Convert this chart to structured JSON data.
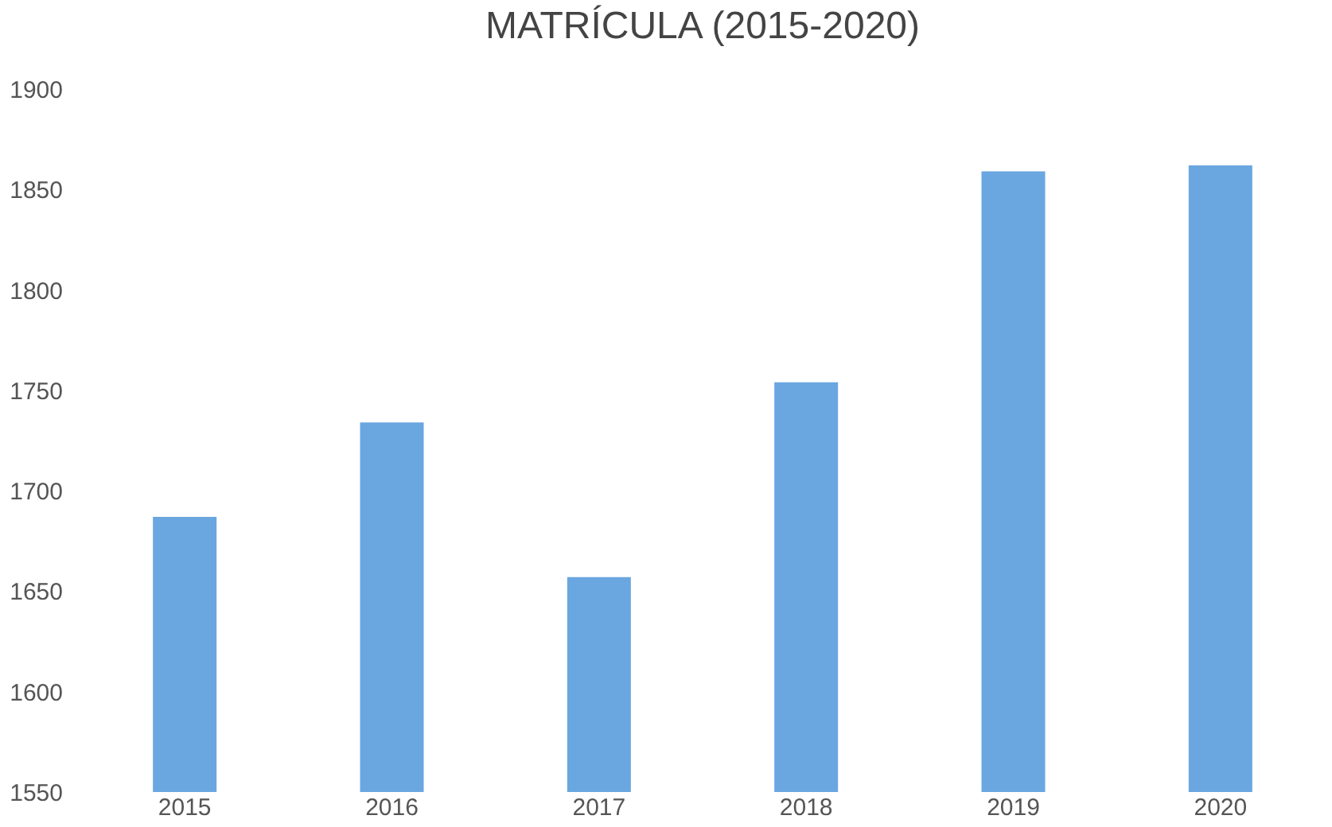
{
  "chart_data": {
    "type": "bar",
    "title": "MATRÍCULA (2015-2020)",
    "categories": [
      "2015",
      "2016",
      "2017",
      "2018",
      "2019",
      "2020"
    ],
    "values": [
      1687,
      1734,
      1657,
      1754,
      1859,
      1862
    ],
    "color": "#6aa6e0",
    "ylim": [
      1550,
      1900
    ],
    "yticks": [
      1550,
      1600,
      1650,
      1700,
      1750,
      1800,
      1850,
      1900
    ],
    "grid": false
  }
}
